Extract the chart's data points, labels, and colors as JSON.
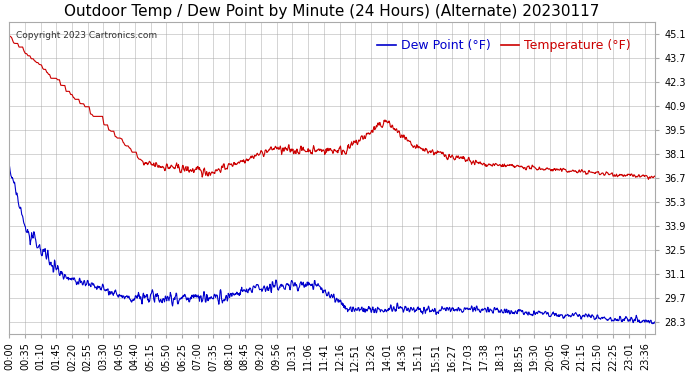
{
  "title": "Outdoor Temp / Dew Point by Minute (24 Hours) (Alternate) 20230117",
  "copyright_text": "Copyright 2023 Cartronics.com",
  "legend_dew": "Dew Point (°F)",
  "legend_temp": "Temperature (°F)",
  "temp_color": "#cc0000",
  "dew_color": "#0000cc",
  "background_color": "#ffffff",
  "plot_bg_color": "#ffffff",
  "grid_color": "#aaaaaa",
  "ylim_min": 27.6,
  "ylim_max": 45.8,
  "yticks": [
    28.3,
    29.7,
    31.1,
    32.5,
    33.9,
    35.3,
    36.7,
    38.1,
    39.5,
    40.9,
    42.3,
    43.7,
    45.1
  ],
  "title_fontsize": 11,
  "tick_fontsize": 7,
  "legend_fontsize": 9
}
